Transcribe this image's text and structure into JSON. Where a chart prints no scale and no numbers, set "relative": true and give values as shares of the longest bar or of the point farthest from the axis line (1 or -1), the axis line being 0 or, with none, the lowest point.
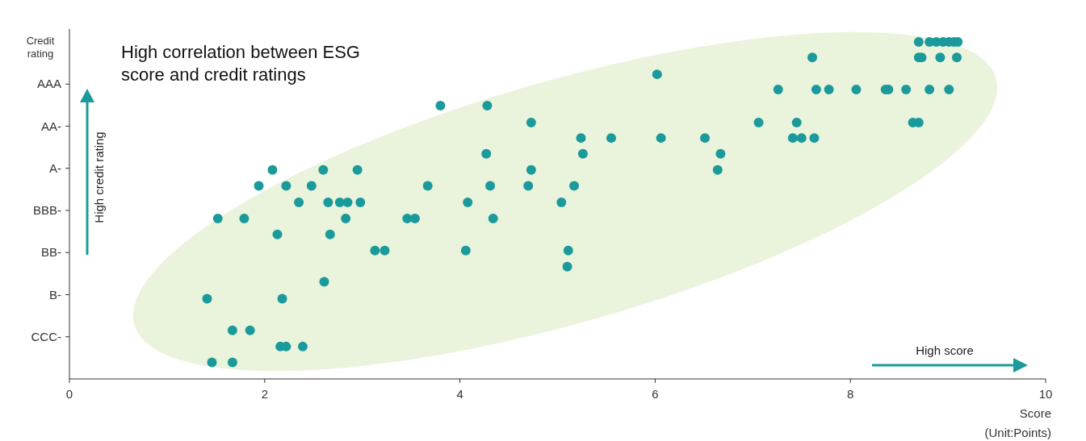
{
  "chart_data": {
    "type": "scatter",
    "title": "High correlation between ESG score and credit ratings",
    "xlabel": "Score",
    "ylabel": "Credit rating",
    "annotations": [
      "High credit rating",
      "High score",
      "(Unit:Points)"
    ],
    "xlim": [
      0,
      10
    ],
    "xticks": [
      0,
      2,
      4,
      6,
      8,
      10
    ],
    "relative": true,
    "y_categories": [
      "AAA",
      "AA-",
      "A-",
      "BBB-",
      "BB-",
      "B-",
      "CCC-"
    ],
    "grid": false,
    "marker": "circle",
    "series": [
      {
        "color": "#1a9a9a",
        "x": [
          8.7,
          8.81,
          8.88,
          8.95,
          9.01,
          9.06,
          9.1,
          7.61,
          8.7,
          8.73,
          8.92,
          9.09,
          6.02,
          7.26,
          7.65,
          7.78,
          8.06,
          8.36,
          8.39,
          8.57,
          8.81,
          9.01,
          3.8,
          4.28,
          4.73,
          7.06,
          7.45,
          8.64,
          8.7,
          5.24,
          5.55,
          6.51,
          7.41,
          7.5,
          7.63,
          6.06,
          4.27,
          5.26,
          6.67,
          2.08,
          2.6,
          2.95,
          4.73,
          6.64,
          1.94,
          2.22,
          2.48,
          3.67,
          4.31,
          4.7,
          5.17,
          2.35,
          2.65,
          2.77,
          2.85,
          2.98,
          4.08,
          5.04,
          1.52,
          1.79,
          2.83,
          3.46,
          3.54,
          4.34,
          2.13,
          2.67,
          3.13,
          3.23,
          4.06,
          5.11,
          5.1,
          2.61,
          1.41,
          2.18,
          1.67,
          1.85,
          2.16,
          2.22,
          2.39,
          1.46,
          1.67
        ],
        "values": [
          1,
          1,
          1,
          1,
          1,
          1,
          1,
          0.954,
          0.954,
          0.954,
          0.954,
          0.954,
          0.904,
          0.859,
          0.859,
          0.859,
          0.859,
          0.859,
          0.859,
          0.859,
          0.859,
          0.859,
          0.811,
          0.811,
          0.761,
          0.761,
          0.761,
          0.761,
          0.761,
          0.715,
          0.715,
          0.715,
          0.715,
          0.715,
          0.715,
          0.715,
          0.668,
          0.668,
          0.668,
          0.62,
          0.62,
          0.62,
          0.62,
          0.62,
          0.573,
          0.573,
          0.573,
          0.573,
          0.573,
          0.573,
          0.573,
          0.524,
          0.524,
          0.524,
          0.524,
          0.524,
          0.524,
          0.524,
          0.476,
          0.476,
          0.476,
          0.476,
          0.476,
          0.476,
          0.429,
          0.429,
          0.381,
          0.381,
          0.381,
          0.381,
          0.333,
          0.288,
          0.238,
          0.238,
          0.144,
          0.144,
          0.096,
          0.096,
          0.096,
          0.049,
          0.049
        ]
      }
    ]
  }
}
